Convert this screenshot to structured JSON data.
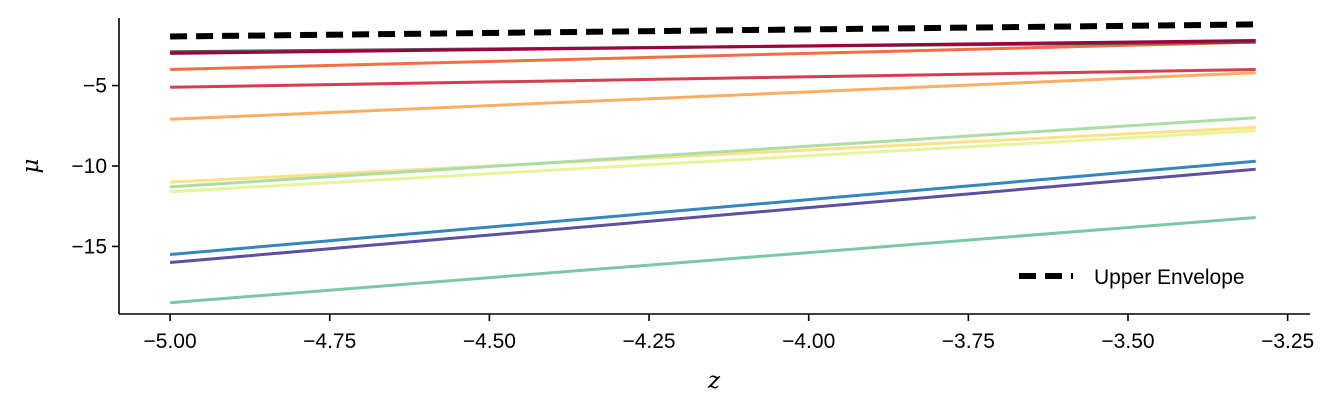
{
  "chart_data": {
    "type": "line",
    "xlabel": "z",
    "ylabel": "μ",
    "xlim": [
      -5.08,
      -3.215
    ],
    "ylim": [
      -19.2,
      -0.8
    ],
    "xticks": [
      -5.0,
      -4.75,
      -4.5,
      -4.25,
      -4.0,
      -3.75,
      -3.5,
      -3.25
    ],
    "xtick_labels": [
      "−5.00",
      "−4.75",
      "−4.50",
      "−4.25",
      "−4.00",
      "−3.75",
      "−3.50",
      "−3.25"
    ],
    "yticks": [
      -5,
      -10,
      -15
    ],
    "ytick_labels": [
      "−5",
      "−10",
      "−15"
    ],
    "grid": false,
    "legend": {
      "position": "bottom-right",
      "entries": [
        "Upper Envelope"
      ]
    },
    "envelope": {
      "name": "Upper Envelope",
      "color": "#000000",
      "x": [
        -5.0,
        -3.3
      ],
      "y": [
        -1.95,
        -1.2
      ]
    },
    "series": [
      {
        "color": "#7ac9a1",
        "x": [
          -5.0,
          -3.3
        ],
        "y": [
          -18.5,
          -13.2
        ]
      },
      {
        "color": "#5e4fa2",
        "x": [
          -5.0,
          -3.3
        ],
        "y": [
          -16.0,
          -10.2
        ]
      },
      {
        "color": "#3288bd",
        "x": [
          -5.0,
          -3.3
        ],
        "y": [
          -15.5,
          -9.7
        ]
      },
      {
        "color": "#e6f598",
        "x": [
          -5.0,
          -3.3
        ],
        "y": [
          -11.6,
          -7.8
        ]
      },
      {
        "color": "#fee08b",
        "x": [
          -5.0,
          -3.3
        ],
        "y": [
          -11.0,
          -7.6
        ]
      },
      {
        "color": "#abdda4",
        "x": [
          -5.0,
          -3.3
        ],
        "y": [
          -11.3,
          -7.0
        ]
      },
      {
        "color": "#fdae61",
        "x": [
          -5.0,
          -3.3
        ],
        "y": [
          -7.1,
          -4.2
        ]
      },
      {
        "color": "#d53e4f",
        "x": [
          -5.0,
          -3.3
        ],
        "y": [
          -5.1,
          -4.0
        ]
      },
      {
        "color": "#f46d43",
        "x": [
          -5.0,
          -3.3
        ],
        "y": [
          -4.0,
          -2.3
        ]
      },
      {
        "color": "#555555",
        "x": [
          -5.0,
          -3.3
        ],
        "y": [
          -2.9,
          -2.3
        ]
      },
      {
        "color": "#9e0142",
        "x": [
          -5.0,
          -3.3
        ],
        "y": [
          -3.0,
          -2.2
        ]
      }
    ]
  }
}
